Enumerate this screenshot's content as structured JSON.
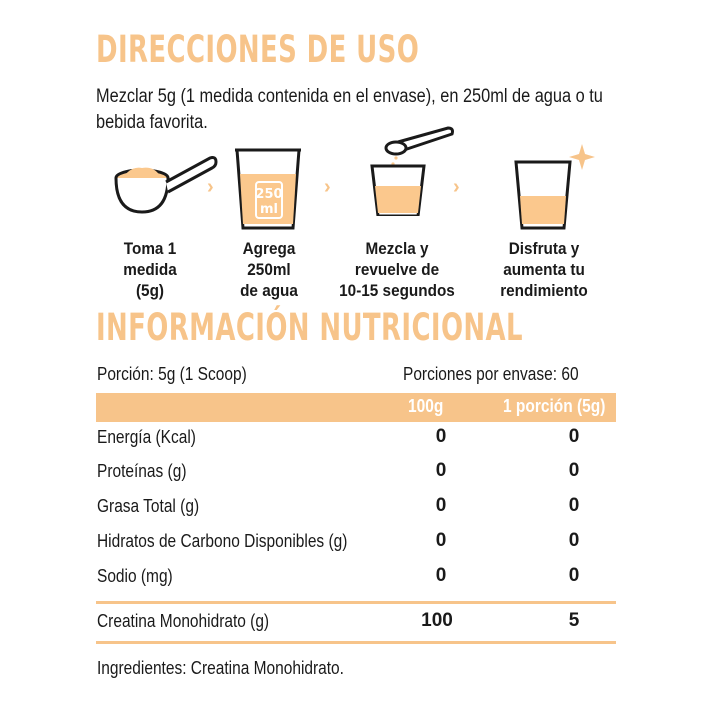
{
  "directions": {
    "title": "DIRECCIONES DE USO",
    "intro": "Mezclar 5g (1 medida contenida en el envase), en 250ml de agua o tu bebida favorita.",
    "steps": [
      {
        "label": "Toma 1\nmedida\n(5g)",
        "icon": "scoop-icon"
      },
      {
        "label": "Agrega\n250ml\nde agua",
        "icon": "glass-250ml-icon",
        "glass_text": "250\nml"
      },
      {
        "label": "Mezcla y\nrevuelve de\n10-15 segundos",
        "icon": "pour-mix-icon"
      },
      {
        "label": "Disfruta y\naumenta tu\nrendimiento",
        "icon": "sparkle-glass-icon"
      }
    ],
    "chevron": "›"
  },
  "nutrition": {
    "title": "INFORMACIÓN NUTRICIONAL",
    "serving": "Porción: 5g (1 Scoop)",
    "servings_per_container": "Porciones por envase: 60",
    "columns": [
      "100g",
      "1 porción (5g)"
    ],
    "rows": [
      {
        "name": "Energía (Kcal)",
        "per100": "0",
        "perServing": "0"
      },
      {
        "name": "Proteínas (g)",
        "per100": "0",
        "perServing": "0"
      },
      {
        "name": "Grasa Total (g)",
        "per100": "0",
        "perServing": "0"
      },
      {
        "name": "Hidratos de Carbono Disponibles (g)",
        "per100": "0",
        "perServing": "0"
      },
      {
        "name": "Sodio (mg)",
        "per100": "0",
        "perServing": "0"
      }
    ],
    "highlight_row": {
      "name": "Creatina Monohidrato (g)",
      "per100": "100",
      "perServing": "5"
    },
    "ingredients": "Ingredientes: Creatina Monohidrato."
  },
  "colors": {
    "accent": "#f7c48a",
    "text": "#1a1a1a",
    "fill": "#fbc88d"
  }
}
